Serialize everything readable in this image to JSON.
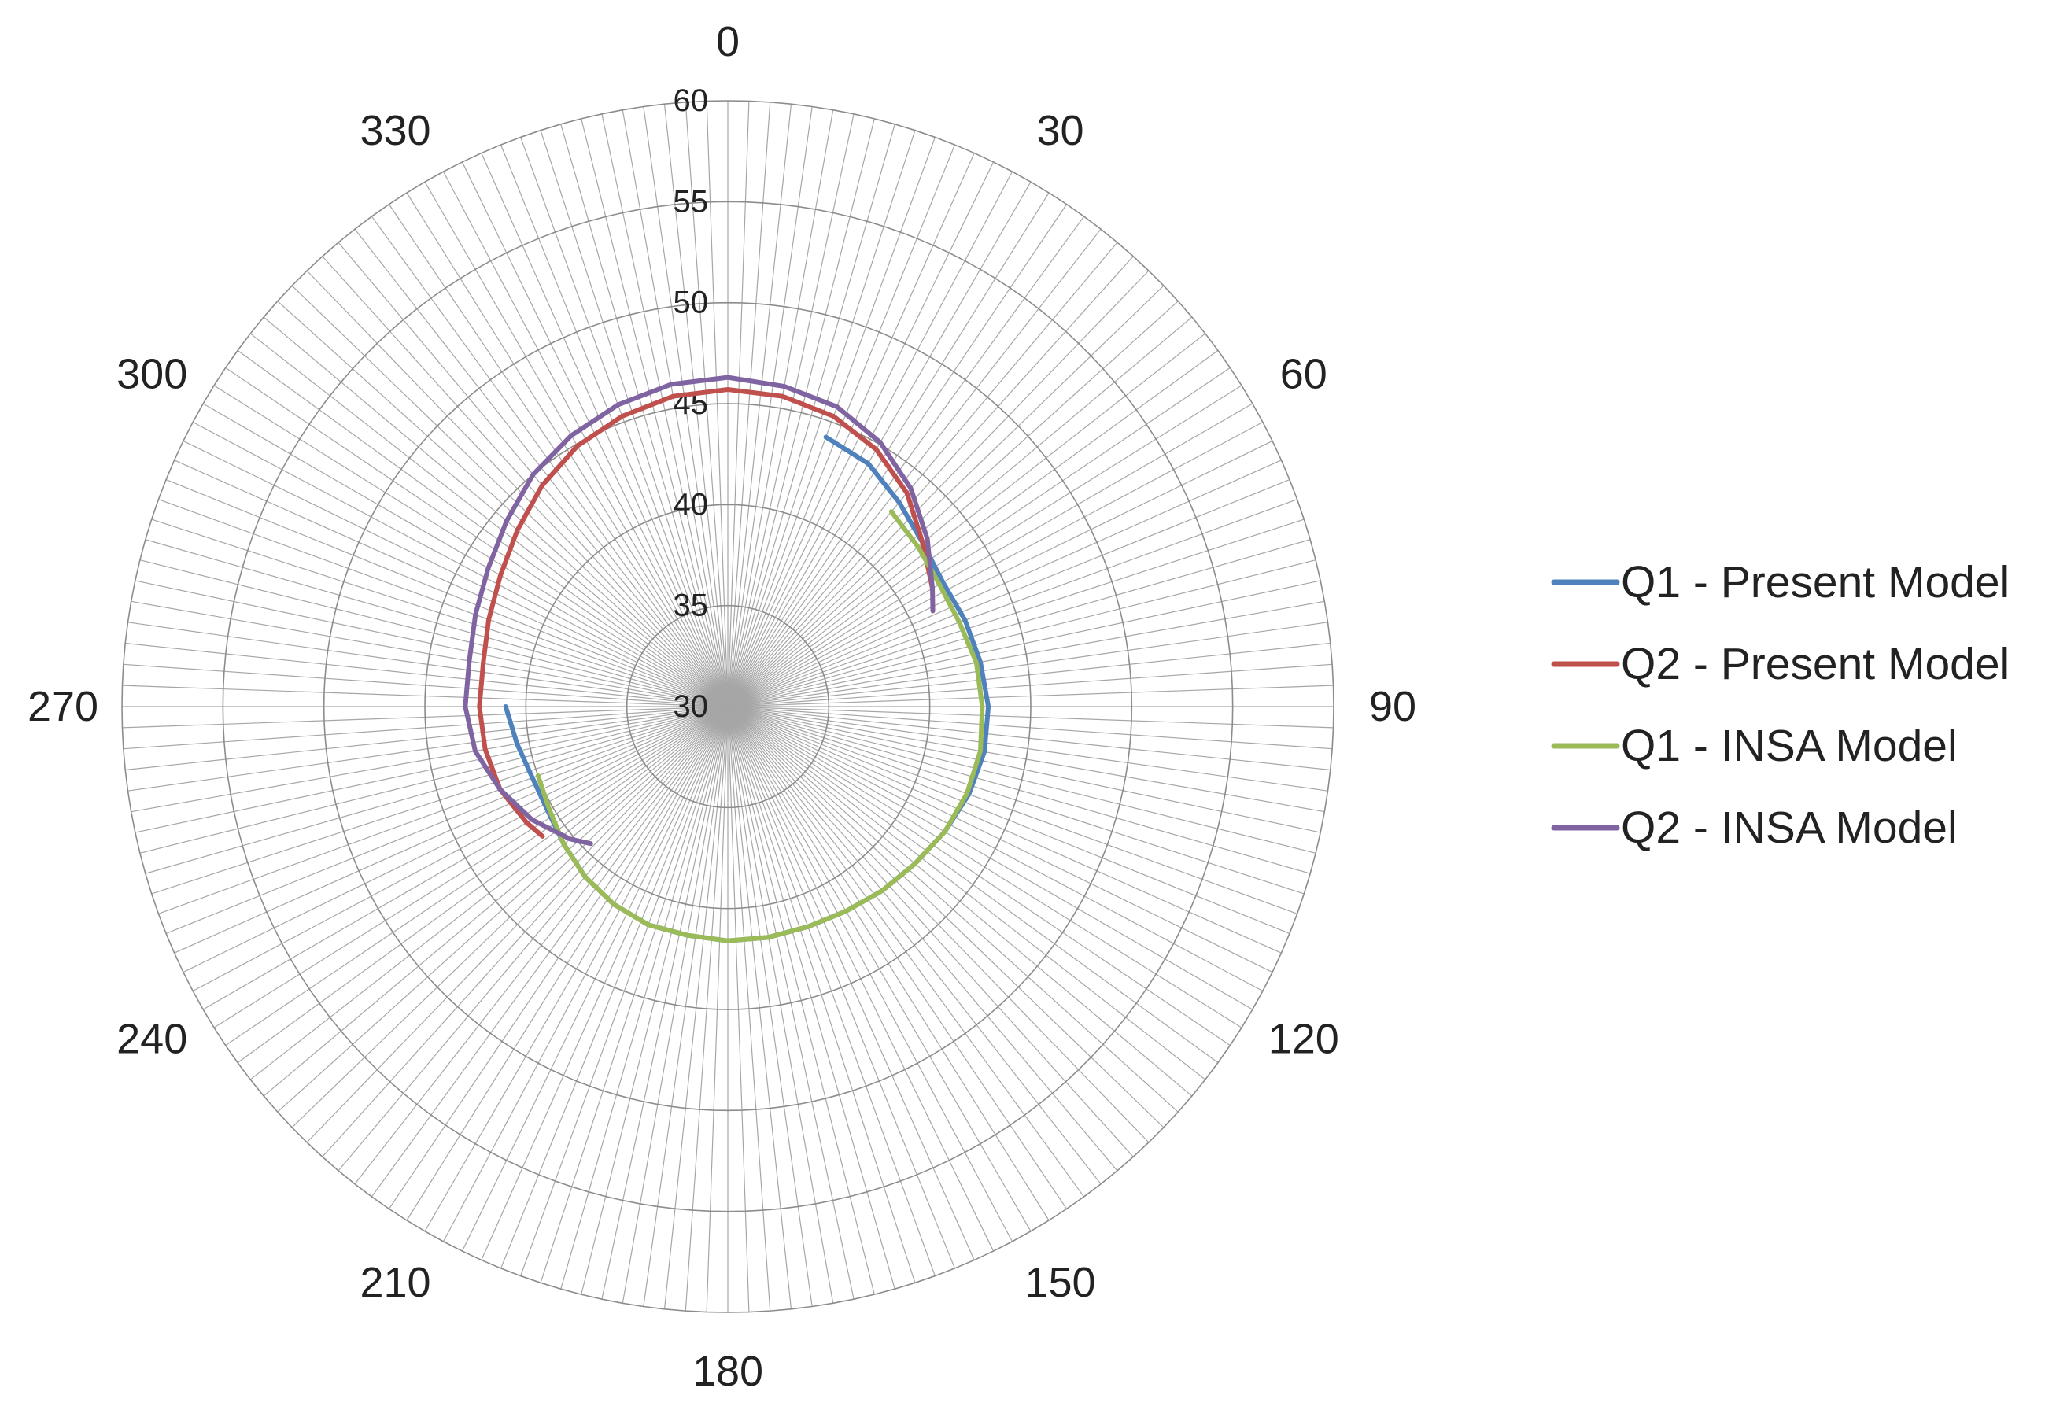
{
  "chart_data": {
    "type": "radar",
    "angle_unit": "degrees",
    "angle_direction": "clockwise, 0 at top",
    "angle_tick_step": 2,
    "angle_labels": [
      "0",
      "30",
      "60",
      "90",
      "120",
      "150",
      "180",
      "210",
      "240",
      "270",
      "300",
      "330"
    ],
    "radial_ticks": [
      "30",
      "35",
      "40",
      "45",
      "50",
      "55",
      "60"
    ],
    "rlim": [
      30,
      60
    ],
    "grid": true,
    "legend_position": "right",
    "series": [
      {
        "name": "Q1 - Present Model",
        "color": "#4f81bd",
        "points": [
          [
            20,
            44.2
          ],
          [
            30,
            43.9
          ],
          [
            40,
            43.2
          ],
          [
            50,
            42.6
          ],
          [
            60,
            42.3
          ],
          [
            70,
            42.5
          ],
          [
            80,
            42.7
          ],
          [
            90,
            42.9
          ],
          [
            100,
            42.9
          ],
          [
            110,
            42.7
          ],
          [
            120,
            42.4
          ],
          [
            130,
            42.1
          ],
          [
            140,
            41.9
          ],
          [
            150,
            41.7
          ],
          [
            160,
            41.6
          ],
          [
            170,
            41.6
          ],
          [
            180,
            41.6
          ],
          [
            190,
            41.5
          ],
          [
            200,
            41.5
          ],
          [
            210,
            41.3
          ],
          [
            220,
            41.0
          ],
          [
            230,
            40.6
          ],
          [
            240,
            40.3
          ],
          [
            250,
            40.3
          ],
          [
            260,
            40.6
          ],
          [
            270,
            41.0
          ]
        ]
      },
      {
        "name": "Q2 - Present Model",
        "color": "#c0504d",
        "points": [
          [
            60,
            41.7
          ],
          [
            50,
            42.6
          ],
          [
            40,
            43.8
          ],
          [
            30,
            44.7
          ],
          [
            20,
            45.3
          ],
          [
            10,
            45.6
          ],
          [
            0,
            45.7
          ],
          [
            350,
            45.6
          ],
          [
            340,
            45.3
          ],
          [
            330,
            44.9
          ],
          [
            320,
            44.3
          ],
          [
            310,
            43.6
          ],
          [
            300,
            43.0
          ],
          [
            290,
            42.6
          ],
          [
            280,
            42.3
          ],
          [
            270,
            42.3
          ],
          [
            260,
            42.2
          ],
          [
            250,
            42.0
          ],
          [
            240,
            41.5
          ],
          [
            235,
            41.2
          ]
        ]
      },
      {
        "name": "Q1 - INSA Model",
        "color": "#9bbb59",
        "points": [
          [
            40,
            42.6
          ],
          [
            50,
            42.3
          ],
          [
            60,
            42.1
          ],
          [
            70,
            42.2
          ],
          [
            80,
            42.5
          ],
          [
            90,
            42.6
          ],
          [
            100,
            42.7
          ],
          [
            110,
            42.6
          ],
          [
            120,
            42.4
          ],
          [
            130,
            42.1
          ],
          [
            140,
            41.9
          ],
          [
            150,
            41.7
          ],
          [
            160,
            41.6
          ],
          [
            170,
            41.6
          ],
          [
            180,
            41.6
          ],
          [
            190,
            41.5
          ],
          [
            200,
            41.5
          ],
          [
            210,
            41.3
          ],
          [
            220,
            41.0
          ],
          [
            230,
            40.6
          ],
          [
            240,
            40.2
          ],
          [
            250,
            40.0
          ]
        ]
      },
      {
        "name": "Q2 - INSA Model",
        "color": "#8064a2",
        "points": [
          [
            65,
            41.2
          ],
          [
            60,
            41.7
          ],
          [
            50,
            42.9
          ],
          [
            40,
            44.1
          ],
          [
            30,
            45.1
          ],
          [
            20,
            45.8
          ],
          [
            10,
            46.1
          ],
          [
            0,
            46.3
          ],
          [
            350,
            46.2
          ],
          [
            340,
            45.9
          ],
          [
            330,
            45.5
          ],
          [
            320,
            45.0
          ],
          [
            310,
            44.3
          ],
          [
            300,
            43.7
          ],
          [
            290,
            43.3
          ],
          [
            280,
            43.0
          ],
          [
            270,
            43.0
          ],
          [
            260,
            42.7
          ],
          [
            250,
            42.0
          ],
          [
            240,
            41.2
          ],
          [
            230,
            40.2
          ],
          [
            225,
            39.6
          ]
        ]
      }
    ]
  }
}
